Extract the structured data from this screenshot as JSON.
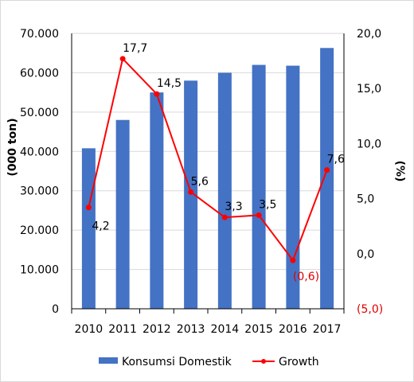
{
  "chart_data": {
    "type": "bar",
    "categories": [
      "2010",
      "2011",
      "2012",
      "2013",
      "2014",
      "2015",
      "2016",
      "2017"
    ],
    "series": [
      {
        "name": "Konsumsi Domestik",
        "type": "bar",
        "axis": "left",
        "color": "#4472c4",
        "values": [
          40800,
          48000,
          55000,
          58000,
          60000,
          62000,
          61800,
          66300
        ]
      },
      {
        "name": "Growth",
        "type": "line",
        "axis": "right",
        "color": "#ff0000",
        "values": [
          4.2,
          17.7,
          14.5,
          5.6,
          3.3,
          3.5,
          -0.6,
          7.6
        ],
        "data_labels": [
          "4,2",
          "17,7",
          "14,5",
          "5,6",
          "3,3",
          "3,5",
          "(0,6)",
          "7,6"
        ]
      }
    ],
    "ylabel": "(000 ton)",
    "y2label": "(%)",
    "ylim": [
      0,
      70000
    ],
    "y2lim": [
      -5,
      20
    ],
    "yticks": [
      "0",
      "10.000",
      "20.000",
      "30.000",
      "40.000",
      "50.000",
      "60.000",
      "70.000"
    ],
    "y2ticks": [
      "(5,0)",
      "0,0",
      "5,0",
      "10,0",
      "15,0",
      "20,0"
    ],
    "grid": true,
    "legend_position": "bottom"
  }
}
